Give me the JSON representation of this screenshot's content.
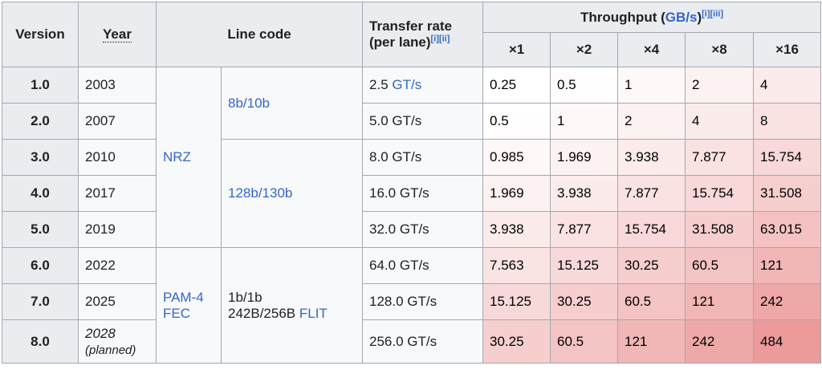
{
  "headers": {
    "version": "Version",
    "year": "Year",
    "line_code": "Line code",
    "transfer_rate_line1": "Transfer rate",
    "transfer_rate_line2": "(per lane)",
    "transfer_rate_refs": [
      "[i]",
      "[ii]"
    ],
    "throughput_prefix": "Throughput (",
    "throughput_link": "GB/s",
    "throughput_suffix": ")",
    "throughput_refs": [
      "[i]",
      "[iii]"
    ],
    "lanes": [
      "×1",
      "×2",
      "×4",
      "×8",
      "×16"
    ]
  },
  "line_codes": {
    "nrz": "NRZ",
    "pam4": "PAM-4",
    "fec": "FEC",
    "enc_8b10b": "8b/10b",
    "enc_128b130b": "128b/130b",
    "enc_1b1b": "1b/1b",
    "enc_242b_prefix": "242B/256B",
    "enc_flit": "FLIT"
  },
  "rows": [
    {
      "version": "1.0",
      "year": "2003",
      "rate_value": "2.5",
      "rate_unit": "GT/s",
      "throughput": [
        "0.25",
        "0.5",
        "1",
        "2",
        "4"
      ]
    },
    {
      "version": "2.0",
      "year": "2007",
      "rate_value": "5.0",
      "rate_unit": "GT/s",
      "throughput": [
        "0.5",
        "1",
        "2",
        "4",
        "8"
      ]
    },
    {
      "version": "3.0",
      "year": "2010",
      "rate_value": "8.0",
      "rate_unit": "GT/s",
      "throughput": [
        "0.985",
        "1.969",
        "3.938",
        "7.877",
        "15.754"
      ]
    },
    {
      "version": "4.0",
      "year": "2017",
      "rate_value": "16.0",
      "rate_unit": "GT/s",
      "throughput": [
        "1.969",
        "3.938",
        "7.877",
        "15.754",
        "31.508"
      ]
    },
    {
      "version": "5.0",
      "year": "2019",
      "rate_value": "32.0",
      "rate_unit": "GT/s",
      "throughput": [
        "3.938",
        "7.877",
        "15.754",
        "31.508",
        "63.015"
      ]
    },
    {
      "version": "6.0",
      "year": "2022",
      "rate_value": "64.0",
      "rate_unit": "GT/s",
      "throughput": [
        "7.563",
        "15.125",
        "30.25",
        "60.5",
        "121"
      ]
    },
    {
      "version": "7.0",
      "year": "2025",
      "rate_value": "128.0",
      "rate_unit": "GT/s",
      "throughput": [
        "15.125",
        "30.25",
        "60.5",
        "121",
        "242"
      ]
    },
    {
      "version": "8.0",
      "year": "2028",
      "year_note": "(planned)",
      "rate_value": "256.0",
      "rate_unit": "GT/s",
      "throughput": [
        "30.25",
        "60.5",
        "121",
        "242",
        "484"
      ]
    }
  ],
  "colors": {
    "link": "#3366cc",
    "header_bg": "#eaecf0",
    "cell_bg": "#f8f9fa",
    "heat_max": "#ec9a9a",
    "border": "#a2a9b1"
  }
}
